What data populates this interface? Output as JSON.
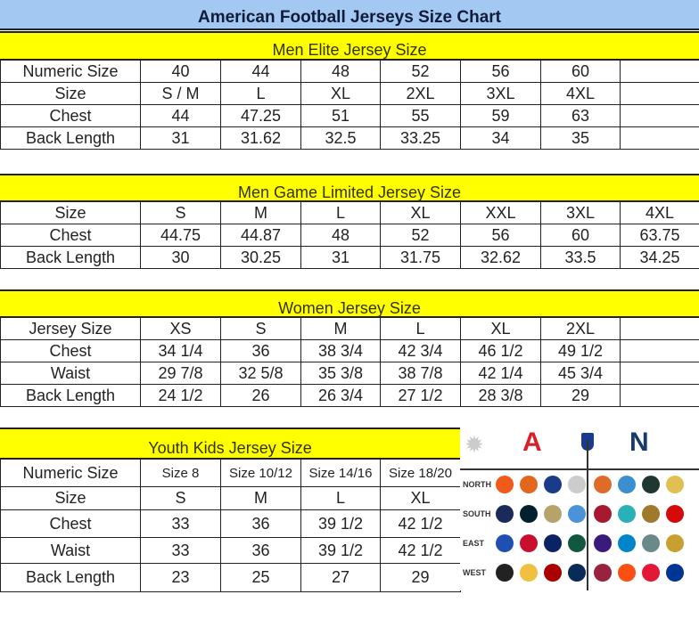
{
  "title": "American Football Jerseys Size Chart",
  "sections": [
    {
      "heading": "Men Elite Jersey Size",
      "rows": [
        [
          "Numeric Size",
          "40",
          "44",
          "48",
          "52",
          "56",
          "60",
          ""
        ],
        [
          "Size",
          "S / M",
          "L",
          "XL",
          "2XL",
          "3XL",
          "4XL",
          ""
        ],
        [
          "Chest",
          "44",
          "47.25",
          "51",
          "55",
          "59",
          "63",
          ""
        ],
        [
          "Back Length",
          "31",
          "31.62",
          "32.5",
          "33.25",
          "34",
          "35",
          ""
        ]
      ]
    },
    {
      "heading": "Men Game Limited Jersey Size",
      "rows": [
        [
          "Size",
          "S",
          "M",
          "L",
          "XL",
          "XXL",
          "3XL",
          "4XL"
        ],
        [
          "Chest",
          "44.75",
          "44.87",
          "48",
          "52",
          "56",
          "60",
          "63.75"
        ],
        [
          "Back Length",
          "30",
          "30.25",
          "31",
          "31.75",
          "32.62",
          "33.5",
          "34.25"
        ]
      ]
    },
    {
      "heading": "Women Jersey Size",
      "rows": [
        [
          "Jersey Size",
          "XS",
          "S",
          "M",
          "L",
          "XL",
          "2XL",
          ""
        ],
        [
          "Chest",
          "34 1/4",
          "36",
          "38 3/4",
          "42 3/4",
          "46 1/2",
          "49 1/2",
          ""
        ],
        [
          "Waist",
          "29 7/8",
          "32 5/8",
          "35 3/8",
          "38 7/8",
          "42 1/4",
          "45 3/4",
          ""
        ],
        [
          "Back Length",
          "24 1/2",
          "26",
          "26 3/4",
          "27 1/2",
          "28 3/8",
          "29",
          ""
        ]
      ]
    },
    {
      "heading": "Youth Kids Jersey Size",
      "rows": [
        [
          "Numeric Size",
          "Size 8",
          "Size 10/12",
          "Size 14/16",
          "Size 18/20"
        ],
        [
          "Size",
          "S",
          "M",
          "L",
          "XL"
        ],
        [
          "Chest",
          "33",
          "36",
          "39 1/2",
          "42 1/2"
        ],
        [
          "Waist",
          "33",
          "36",
          "39 1/2",
          "42 1/2"
        ],
        [
          "Back Length",
          "23",
          "25",
          "27",
          "29"
        ]
      ]
    }
  ],
  "logos": {
    "afc_letter": "A",
    "nfc_letter": "N",
    "divisions": [
      "NORTH",
      "SOUTH",
      "EAST",
      "WEST"
    ],
    "afc_colors": [
      [
        "#f05a1a",
        "#e3661e",
        "#1a3a8a",
        "#cccccc"
      ],
      [
        "#1a2a5a",
        "#03202f",
        "#b5a36a",
        "#4b92db"
      ],
      [
        "#1f4fb0",
        "#c8102e",
        "#0b2265",
        "#125740"
      ],
      [
        "#222222",
        "#f0c040",
        "#aa0000",
        "#0a2a5a"
      ]
    ],
    "nfc_colors": [
      [
        "#e06a2a",
        "#3b8fd0",
        "#203731",
        "#e0c050"
      ],
      [
        "#a71930",
        "#2ab0b8",
        "#9f792c",
        "#d50a0a"
      ],
      [
        "#3a1a7a",
        "#0085ca",
        "#6a8a8a",
        "#c9a030"
      ],
      [
        "#97233f",
        "#fb4f14",
        "#e31837",
        "#003594"
      ]
    ]
  }
}
